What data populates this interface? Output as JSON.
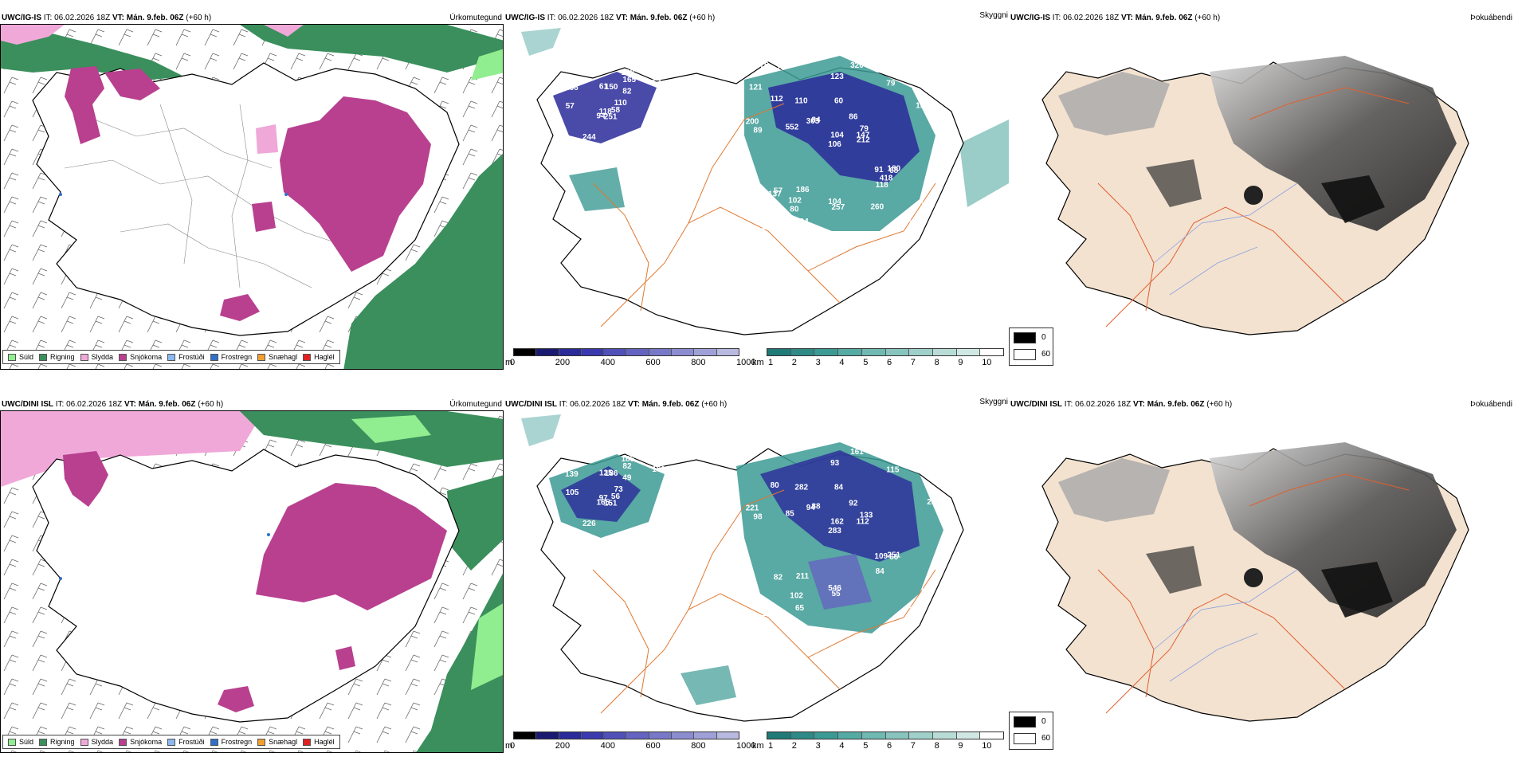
{
  "rows": [
    {
      "model": "UWC/IG-IS",
      "it_label": "IT:",
      "it_value": "06.02.2026 18Z",
      "vt_label": "VT:",
      "vt_value": "Mán. 9.feb. 06Z",
      "lead": "(+60 h)",
      "titles": {
        "precip": "Úrkomutegund",
        "visibility": "Skyggni",
        "fog": "Þokuábendi"
      },
      "vis_numbers": [
        "251",
        "166",
        "118",
        "187",
        "110",
        "244",
        "108",
        "150",
        "165",
        "58",
        "89",
        "80",
        "57",
        "57",
        "94",
        "82",
        "82",
        "61",
        "86",
        "57",
        "84",
        "75",
        "80",
        "60",
        "79",
        "68",
        "112",
        "123",
        "89",
        "91",
        "110",
        "106",
        "104",
        "104",
        "110",
        "79",
        "186",
        "208",
        "128",
        "180",
        "320",
        "303",
        "552",
        "118",
        "434",
        "200",
        "147",
        "208",
        "257",
        "212",
        "137",
        "19",
        "121",
        "418",
        "260",
        "102",
        "78",
        "76",
        "86"
      ]
    },
    {
      "model": "UWC/DINI ISL",
      "it_label": "IT:",
      "it_value": "06.02.2026 18Z",
      "vt_label": "VT:",
      "vt_value": "Mán. 9.feb. 06Z",
      "lead": "(+60 h)",
      "titles": {
        "precip": "Úrkomutegund",
        "visibility": "Skyggni",
        "fog": "Þokuábendi"
      },
      "vis_numbers": [
        "151",
        "139",
        "97",
        "78",
        "73",
        "226",
        "185",
        "186",
        "82",
        "56",
        "59",
        "63",
        "105",
        "160",
        "165",
        "49",
        "99",
        "125",
        "92",
        "82",
        "88",
        "83",
        "102",
        "84",
        "133",
        "66",
        "80",
        "93",
        "98",
        "109",
        "259",
        "283",
        "546",
        "162",
        "282",
        "115",
        "211",
        "204",
        "539",
        "251",
        "161",
        "94",
        "85",
        "84",
        "65",
        "221",
        "112",
        "119",
        "55"
      ]
    }
  ],
  "precip_legend": [
    {
      "label": "Súld",
      "color": "#90ee90"
    },
    {
      "label": "Rigning",
      "color": "#3a8f5c"
    },
    {
      "label": "Slydda",
      "color": "#f0a8d8"
    },
    {
      "label": "Snjókoma",
      "color": "#b8408f"
    },
    {
      "label": "Frostúði",
      "color": "#8ab8f0"
    },
    {
      "label": "Frostregn",
      "color": "#3070c8"
    },
    {
      "label": "Snæhagl",
      "color": "#f0a030"
    },
    {
      "label": "Haglél",
      "color": "#e02020"
    }
  ],
  "vis_m_scale": {
    "unit": "m",
    "ticks": [
      "0",
      "200",
      "400",
      "600",
      "800",
      "1000"
    ],
    "colors": [
      "#000000",
      "#1a1a70",
      "#2a2a9a",
      "#3a3aae",
      "#5050b8",
      "#6464c0",
      "#7878c8",
      "#8c8cd0",
      "#a0a0d8",
      "#b8b8e0"
    ]
  },
  "vis_km_scale": {
    "unit": "km",
    "ticks": [
      "1",
      "2",
      "3",
      "4",
      "5",
      "6",
      "7",
      "8",
      "9",
      "10"
    ],
    "colors": [
      "#1f7a78",
      "#2d8a86",
      "#3c9a94",
      "#56aaa4",
      "#70b8b2",
      "#88c4be",
      "#a0d0ca",
      "#b8dcd6",
      "#d0e8e4",
      "#ffffff"
    ]
  },
  "fog_legend": [
    {
      "label": "0",
      "color": "#000000"
    },
    {
      "label": "60",
      "color": "#ffffff"
    }
  ]
}
